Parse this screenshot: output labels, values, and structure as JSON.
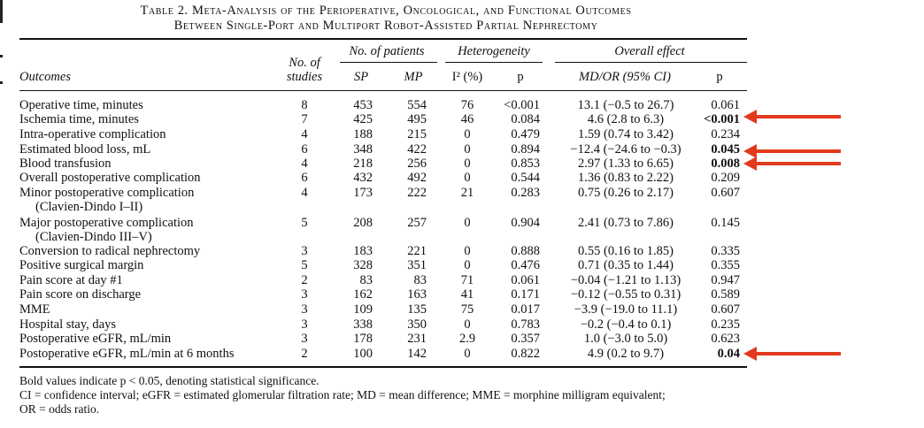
{
  "title": {
    "line1": "Table 2. Meta-Analysis of the Perioperative, Oncological, and Functional Outcomes",
    "line2": "Between Single-Port and Multiport Robot-Assisted Partial Nephrectomy"
  },
  "headers": {
    "patients_group": "No. of patients",
    "heterogeneity_group": "Heterogeneity",
    "overall_group": "Overall effect",
    "outcomes": "Outcomes",
    "studies_line1": "No. of",
    "studies_line2": "studies",
    "sp": "SP",
    "mp": "MP",
    "i2": "I² (%)",
    "p_het": "p",
    "mdor": "MD/OR (95% CI)",
    "p_overall": "p"
  },
  "rows": [
    {
      "outcome": "Operative time, minutes",
      "studies": "8",
      "sp": "453",
      "mp": "554",
      "i2": "76",
      "p_het": "<0.001",
      "effect": "13.1 (−0.5 to 26.7)",
      "p": "0.061",
      "bold": false
    },
    {
      "outcome": "Ischemia time, minutes",
      "studies": "7",
      "sp": "425",
      "mp": "495",
      "i2": "46",
      "p_het": "0.084",
      "effect": "4.6 (2.8 to 6.3)",
      "p": "<0.001",
      "bold": true
    },
    {
      "outcome": "Intra-operative complication",
      "studies": "4",
      "sp": "188",
      "mp": "215",
      "i2": "0",
      "p_het": "0.479",
      "effect": "1.59 (0.74 to 3.42)",
      "p": "0.234",
      "bold": false
    },
    {
      "outcome": "Estimated blood loss, mL",
      "studies": "6",
      "sp": "348",
      "mp": "422",
      "i2": "0",
      "p_het": "0.894",
      "effect": "−12.4 (−24.6 to −0.3)",
      "p": "0.045",
      "bold": true
    },
    {
      "outcome": "Blood transfusion",
      "studies": "4",
      "sp": "218",
      "mp": "256",
      "i2": "0",
      "p_het": "0.853",
      "effect": "2.97 (1.33 to 6.65)",
      "p": "0.008",
      "bold": true
    },
    {
      "outcome": "Overall postoperative complication",
      "studies": "6",
      "sp": "432",
      "mp": "492",
      "i2": "0",
      "p_het": "0.544",
      "effect": "1.36 (0.83 to 2.22)",
      "p": "0.209",
      "bold": false
    },
    {
      "outcome": "Minor postoperative complication",
      "sub": "(Clavien-Dindo I–II)",
      "studies": "4",
      "sp": "173",
      "mp": "222",
      "i2": "21",
      "p_het": "0.283",
      "effect": "0.75 (0.26 to 2.17)",
      "p": "0.607",
      "bold": false
    },
    {
      "outcome": "Major postoperative complication",
      "sub": "(Clavien-Dindo III–V)",
      "studies": "5",
      "sp": "208",
      "mp": "257",
      "i2": "0",
      "p_het": "0.904",
      "effect": "2.41 (0.73 to 7.86)",
      "p": "0.145",
      "bold": false
    },
    {
      "outcome": "Conversion to radical nephrectomy",
      "studies": "3",
      "sp": "183",
      "mp": "221",
      "i2": "0",
      "p_het": "0.888",
      "effect": "0.55 (0.16 to 1.85)",
      "p": "0.335",
      "bold": false
    },
    {
      "outcome": "Positive surgical margin",
      "studies": "5",
      "sp": "328",
      "mp": "351",
      "i2": "0",
      "p_het": "0.476",
      "effect": "0.71 (0.35 to 1.44)",
      "p": "0.355",
      "bold": false
    },
    {
      "outcome": "Pain score at day #1",
      "studies": "2",
      "sp": "83",
      "mp": "83",
      "i2": "71",
      "p_het": "0.061",
      "effect": "−0.04 (−1.21 to 1.13)",
      "p": "0.947",
      "bold": false
    },
    {
      "outcome": "Pain score on discharge",
      "studies": "3",
      "sp": "162",
      "mp": "163",
      "i2": "41",
      "p_het": "0.171",
      "effect": "−0.12 (−0.55 to 0.31)",
      "p": "0.589",
      "bold": false
    },
    {
      "outcome": "MME",
      "studies": "3",
      "sp": "109",
      "mp": "135",
      "i2": "75",
      "p_het": "0.017",
      "effect": "−3.9 (−19.0 to 11.1)",
      "p": "0.607",
      "bold": false
    },
    {
      "outcome": "Hospital stay, days",
      "studies": "3",
      "sp": "338",
      "mp": "350",
      "i2": "0",
      "p_het": "0.783",
      "effect": "−0.2 (−0.4 to 0.1)",
      "p": "0.235",
      "bold": false
    },
    {
      "outcome": "Postoperative eGFR, mL/min",
      "studies": "3",
      "sp": "178",
      "mp": "231",
      "i2": "2.9",
      "p_het": "0.357",
      "effect": "1.0 (−3.0 to 5.0)",
      "p": "0.623",
      "bold": false
    },
    {
      "outcome": "Postoperative eGFR, mL/min at 6 months",
      "studies": "2",
      "sp": "100",
      "mp": "142",
      "i2": "0",
      "p_het": "0.822",
      "effect": "4.9 (0.2 to 9.7)",
      "p": "0.04",
      "bold": true
    }
  ],
  "footnotes": {
    "line1": "Bold values indicate p < 0.05, denoting statistical significance.",
    "line2": "CI = confidence interval; eGFR = estimated glomerular filtration rate; MD = mean difference; MME = morphine milligram equivalent;",
    "line3": "OR = odds ratio."
  },
  "accent_color": "#e23a1c"
}
